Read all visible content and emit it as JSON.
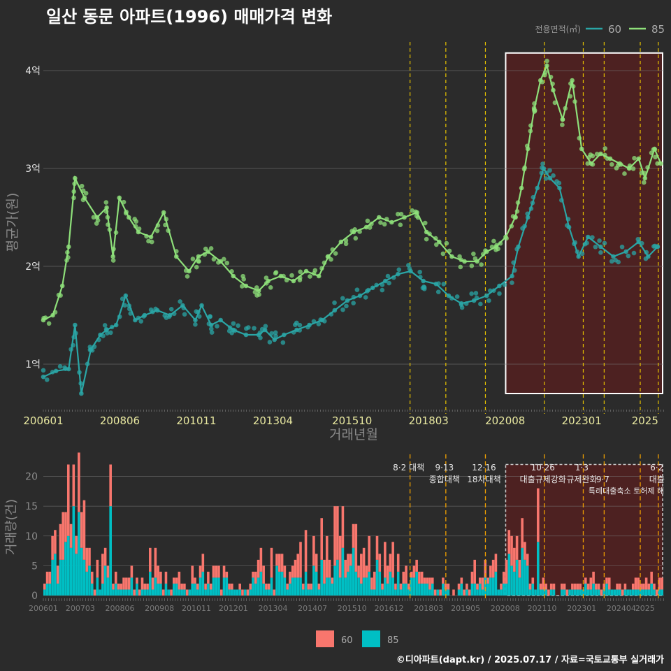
{
  "title": "일산 동문 아파트(1996) 매매가격 변화",
  "footer": "©디아파트(dapt.kr) / 2025.07.17 / 자료=국토교통부 실거래가",
  "colors": {
    "s60": "#2aa6a6",
    "s85": "#8ee07a",
    "bar60": "#f8766d",
    "bar85": "#00bfc4",
    "highlight": "#5a1f1f",
    "policy": "#e6c200",
    "policy_bar": "#f0a000"
  },
  "chart_data": [
    {
      "type": "line",
      "title": "일산 동문 아파트(1996) 매매가격 변화",
      "xlabel": "거래년월",
      "ylabel": "평균가(원)",
      "xlim": [
        2006.0,
        2025.6
      ],
      "ylim": [
        0.55,
        4.35
      ],
      "y_ticks": [
        {
          "v": 1,
          "label": "1억"
        },
        {
          "v": 2,
          "label": "2억"
        },
        {
          "v": 3,
          "label": "3억"
        },
        {
          "v": 4,
          "label": "4억"
        }
      ],
      "x_ticks": [
        {
          "v": 2006.0,
          "label": "200601"
        },
        {
          "v": 2008.4167,
          "label": "200806"
        },
        {
          "v": 2010.8333,
          "label": "201011"
        },
        {
          "v": 2013.25,
          "label": "201304"
        },
        {
          "v": 2015.75,
          "label": "201510"
        },
        {
          "v": 2018.1667,
          "label": "201803"
        },
        {
          "v": 2020.5833,
          "label": "202008"
        },
        {
          "v": 2023.0,
          "label": "202301"
        },
        {
          "v": 2025.0,
          "label": "2025"
        }
      ],
      "legend_title": "전용면적(㎡)",
      "series": [
        {
          "name": "60",
          "key": "s60",
          "points": [
            [
              2006.0,
              0.87
            ],
            [
              2006.4,
              0.93
            ],
            [
              2006.8,
              0.95
            ],
            [
              2007.0,
              1.4
            ],
            [
              2007.2,
              0.7
            ],
            [
              2007.5,
              1.15
            ],
            [
              2007.8,
              1.3
            ],
            [
              2008.0,
              1.35
            ],
            [
              2008.3,
              1.4
            ],
            [
              2008.6,
              1.7
            ],
            [
              2008.9,
              1.45
            ],
            [
              2009.2,
              1.5
            ],
            [
              2009.6,
              1.55
            ],
            [
              2010.0,
              1.5
            ],
            [
              2010.4,
              1.6
            ],
            [
              2010.8,
              1.45
            ],
            [
              2011.0,
              1.6
            ],
            [
              2011.3,
              1.4
            ],
            [
              2011.6,
              1.45
            ],
            [
              2012.0,
              1.35
            ],
            [
              2012.4,
              1.3
            ],
            [
              2012.8,
              1.3
            ],
            [
              2013.0,
              1.35
            ],
            [
              2013.3,
              1.25
            ],
            [
              2013.6,
              1.3
            ],
            [
              2014.0,
              1.35
            ],
            [
              2014.4,
              1.4
            ],
            [
              2014.8,
              1.45
            ],
            [
              2015.2,
              1.55
            ],
            [
              2015.6,
              1.65
            ],
            [
              2016.0,
              1.7
            ],
            [
              2016.4,
              1.78
            ],
            [
              2016.8,
              1.85
            ],
            [
              2017.2,
              1.92
            ],
            [
              2017.6,
              1.95
            ],
            [
              2018.0,
              1.85
            ],
            [
              2018.4,
              1.82
            ],
            [
              2018.8,
              1.7
            ],
            [
              2019.2,
              1.62
            ],
            [
              2019.6,
              1.65
            ],
            [
              2020.0,
              1.7
            ],
            [
              2020.4,
              1.8
            ],
            [
              2020.8,
              1.9
            ],
            [
              2021.0,
              2.2
            ],
            [
              2021.3,
              2.5
            ],
            [
              2021.6,
              2.8
            ],
            [
              2021.8,
              3.0
            ],
            [
              2022.0,
              2.9
            ],
            [
              2022.3,
              2.8
            ],
            [
              2022.6,
              2.4
            ],
            [
              2022.9,
              2.1
            ],
            [
              2023.2,
              2.3
            ],
            [
              2023.6,
              2.2
            ],
            [
              2024.0,
              2.1
            ],
            [
              2024.4,
              2.15
            ],
            [
              2024.8,
              2.25
            ],
            [
              2025.1,
              2.1
            ],
            [
              2025.4,
              2.2
            ]
          ]
        },
        {
          "name": "85",
          "key": "s85",
          "points": [
            [
              2006.0,
              1.45
            ],
            [
              2006.3,
              1.5
            ],
            [
              2006.6,
              1.8
            ],
            [
              2006.8,
              2.2
            ],
            [
              2007.0,
              2.9
            ],
            [
              2007.3,
              2.7
            ],
            [
              2007.7,
              2.5
            ],
            [
              2008.0,
              2.6
            ],
            [
              2008.2,
              2.1
            ],
            [
              2008.4,
              2.7
            ],
            [
              2008.7,
              2.5
            ],
            [
              2009.0,
              2.35
            ],
            [
              2009.4,
              2.3
            ],
            [
              2009.8,
              2.55
            ],
            [
              2010.2,
              2.1
            ],
            [
              2010.6,
              1.95
            ],
            [
              2010.9,
              2.1
            ],
            [
              2011.2,
              2.15
            ],
            [
              2011.6,
              2.05
            ],
            [
              2012.0,
              1.9
            ],
            [
              2012.4,
              1.8
            ],
            [
              2012.8,
              1.75
            ],
            [
              2013.1,
              1.85
            ],
            [
              2013.5,
              1.9
            ],
            [
              2013.9,
              1.85
            ],
            [
              2014.3,
              1.95
            ],
            [
              2014.7,
              1.9
            ],
            [
              2015.0,
              2.1
            ],
            [
              2015.4,
              2.25
            ],
            [
              2015.8,
              2.35
            ],
            [
              2016.2,
              2.4
            ],
            [
              2016.6,
              2.5
            ],
            [
              2017.0,
              2.45
            ],
            [
              2017.4,
              2.5
            ],
            [
              2017.8,
              2.55
            ],
            [
              2018.1,
              2.35
            ],
            [
              2018.5,
              2.25
            ],
            [
              2018.9,
              2.1
            ],
            [
              2019.3,
              2.05
            ],
            [
              2019.7,
              2.05
            ],
            [
              2020.0,
              2.15
            ],
            [
              2020.3,
              2.2
            ],
            [
              2020.6,
              2.3
            ],
            [
              2020.9,
              2.5
            ],
            [
              2021.1,
              2.8
            ],
            [
              2021.3,
              3.2
            ],
            [
              2021.5,
              3.6
            ],
            [
              2021.7,
              3.9
            ],
            [
              2021.9,
              4.05
            ],
            [
              2022.1,
              3.8
            ],
            [
              2022.4,
              3.5
            ],
            [
              2022.7,
              3.9
            ],
            [
              2023.0,
              3.2
            ],
            [
              2023.3,
              3.05
            ],
            [
              2023.6,
              3.15
            ],
            [
              2023.9,
              3.1
            ],
            [
              2024.2,
              3.05
            ],
            [
              2024.5,
              3.0
            ],
            [
              2024.8,
              3.1
            ],
            [
              2025.0,
              2.9
            ],
            [
              2025.3,
              3.2
            ],
            [
              2025.5,
              3.05
            ]
          ]
        }
      ]
    },
    {
      "type": "bar",
      "ylabel": "거래량(건)",
      "xlim": [
        2006.0,
        2025.6
      ],
      "ylim": [
        0,
        23
      ],
      "y_ticks": [
        0,
        5,
        10,
        15,
        20
      ],
      "x_ticks": [
        {
          "v": 2006.0,
          "label": "200601"
        },
        {
          "v": 2007.1667,
          "label": "200703"
        },
        {
          "v": 2008.4167,
          "label": "200806"
        },
        {
          "v": 2009.6667,
          "label": "200908"
        },
        {
          "v": 2010.8333,
          "label": "201011"
        },
        {
          "v": 2012.0,
          "label": "201201"
        },
        {
          "v": 2013.25,
          "label": "201304"
        },
        {
          "v": 2014.5,
          "label": "201407"
        },
        {
          "v": 2015.75,
          "label": "201510"
        },
        {
          "v": 2016.9167,
          "label": "201612"
        },
        {
          "v": 2018.1667,
          "label": "201803"
        },
        {
          "v": 2019.3333,
          "label": "201905"
        },
        {
          "v": 2020.5833,
          "label": "202008"
        },
        {
          "v": 2021.75,
          "label": "202110"
        },
        {
          "v": 2023.0,
          "label": "202301"
        },
        {
          "v": 2024.25,
          "label": "202404"
        },
        {
          "v": 2025.0,
          "label": "2025"
        }
      ],
      "legend": [
        {
          "name": "60",
          "key": "bar60"
        },
        {
          "name": "85",
          "key": "bar85"
        }
      ],
      "volume_profile": [
        [
          2006.0,
          5
        ],
        [
          2006.5,
          13
        ],
        [
          2007.0,
          20
        ],
        [
          2007.5,
          4
        ],
        [
          2008.0,
          6
        ],
        [
          2008.5,
          5
        ],
        [
          2009.0,
          3
        ],
        [
          2009.5,
          7
        ],
        [
          2010.0,
          3
        ],
        [
          2010.5,
          3
        ],
        [
          2011.0,
          5
        ],
        [
          2011.5,
          4
        ],
        [
          2012.0,
          3
        ],
        [
          2012.5,
          2
        ],
        [
          2013.0,
          8
        ],
        [
          2013.5,
          5
        ],
        [
          2014.0,
          6
        ],
        [
          2014.5,
          9
        ],
        [
          2015.0,
          10
        ],
        [
          2015.5,
          11
        ],
        [
          2016.0,
          8
        ],
        [
          2016.5,
          7
        ],
        [
          2017.0,
          6
        ],
        [
          2017.5,
          5
        ],
        [
          2018.0,
          3
        ],
        [
          2018.5,
          2
        ],
        [
          2019.0,
          2
        ],
        [
          2019.5,
          4
        ],
        [
          2020.0,
          5
        ],
        [
          2020.5,
          6
        ],
        [
          2021.0,
          10
        ],
        [
          2021.5,
          3
        ],
        [
          2022.0,
          2
        ],
        [
          2022.5,
          1
        ],
        [
          2023.0,
          2
        ],
        [
          2023.5,
          3
        ],
        [
          2024.0,
          2
        ],
        [
          2024.5,
          3
        ],
        [
          2025.0,
          3
        ],
        [
          2025.5,
          2
        ]
      ]
    }
  ],
  "highlight_range": [
    2020.6,
    2025.6
  ],
  "policy_lines": [
    {
      "x": 2017.58,
      "top": "8·2 대책",
      "bottom": ""
    },
    {
      "x": 2018.71,
      "top": "9·13",
      "bottom": "종합대책"
    },
    {
      "x": 2019.96,
      "top": "12·16",
      "bottom": "18차대책"
    },
    {
      "x": 2021.82,
      "top": "10·26",
      "bottom": "대출규제강화"
    },
    {
      "x": 2023.05,
      "top": "1·3",
      "bottom": "규제완화"
    },
    {
      "x": 2023.71,
      "top": "",
      "bottom": "9·7"
    },
    {
      "x": 2024.85,
      "top": "",
      "bottom": ""
    },
    {
      "x": 2025.42,
      "top": "6·2",
      "bottom": "대출"
    }
  ],
  "policy_extra_label": "특례대출축소 토허제 해",
  "legend_top_label": "전용면적(㎡)"
}
